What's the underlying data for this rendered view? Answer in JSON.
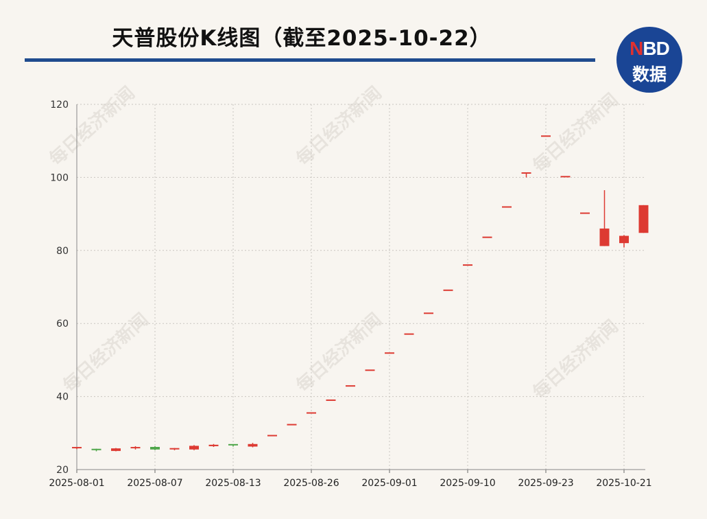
{
  "title": "天普股份K线图（截至2025-10-22）",
  "logo": {
    "line1_n": "N",
    "line1_rest": "BD",
    "line2": "数据"
  },
  "watermark": "每日经济新闻",
  "colors": {
    "up": "#dd3a32",
    "down": "#4ea64a",
    "title_rule": "#1f4b8e",
    "logo_bg": "#1a4595"
  },
  "chart_data": {
    "type": "candlestick",
    "title": "天普股份K线图（截至2025-10-22）",
    "xlabel": "",
    "ylabel": "",
    "ylim": [
      20,
      120
    ],
    "yticks": [
      20,
      40,
      60,
      80,
      100,
      120
    ],
    "xtick_labels": [
      "2025-08-01",
      "2025-08-07",
      "2025-08-13",
      "2025-08-26",
      "2025-09-01",
      "2025-09-10",
      "2025-09-23",
      "2025-10-21"
    ],
    "xtick_indices": [
      0,
      4,
      8,
      12,
      16,
      20,
      24,
      28
    ],
    "grid": true,
    "candles": [
      {
        "o": 25.8,
        "h": 26.2,
        "l": 25.6,
        "c": 26.0
      },
      {
        "o": 25.5,
        "h": 25.7,
        "l": 25.0,
        "c": 25.2
      },
      {
        "o": 25.1,
        "h": 25.9,
        "l": 25.0,
        "c": 25.8
      },
      {
        "o": 25.8,
        "h": 26.4,
        "l": 25.5,
        "c": 26.0
      },
      {
        "o": 26.2,
        "h": 26.4,
        "l": 25.3,
        "c": 25.5
      },
      {
        "o": 25.4,
        "h": 25.9,
        "l": 25.3,
        "c": 25.7
      },
      {
        "o": 25.5,
        "h": 26.7,
        "l": 25.3,
        "c": 26.5
      },
      {
        "o": 26.4,
        "h": 27.0,
        "l": 26.2,
        "c": 26.8
      },
      {
        "o": 26.8,
        "h": 26.9,
        "l": 26.3,
        "c": 26.5
      },
      {
        "o": 26.3,
        "h": 27.3,
        "l": 26.1,
        "c": 27.0
      },
      {
        "o": 29.3,
        "h": 29.3,
        "l": 29.3,
        "c": 29.3
      },
      {
        "o": 32.3,
        "h": 32.3,
        "l": 32.3,
        "c": 32.3
      },
      {
        "o": 35.5,
        "h": 35.5,
        "l": 35.5,
        "c": 35.5
      },
      {
        "o": 39.0,
        "h": 39.0,
        "l": 39.0,
        "c": 39.0
      },
      {
        "o": 42.9,
        "h": 42.9,
        "l": 42.9,
        "c": 42.9
      },
      {
        "o": 47.2,
        "h": 47.2,
        "l": 47.2,
        "c": 47.2
      },
      {
        "o": 51.9,
        "h": 51.9,
        "l": 51.9,
        "c": 51.9
      },
      {
        "o": 57.1,
        "h": 57.1,
        "l": 57.1,
        "c": 57.1
      },
      {
        "o": 62.8,
        "h": 62.8,
        "l": 62.8,
        "c": 62.8
      },
      {
        "o": 69.1,
        "h": 69.1,
        "l": 69.1,
        "c": 69.1
      },
      {
        "o": 76.0,
        "h": 76.0,
        "l": 76.0,
        "c": 76.0
      },
      {
        "o": 83.6,
        "h": 83.6,
        "l": 83.6,
        "c": 83.6
      },
      {
        "o": 91.9,
        "h": 91.9,
        "l": 91.9,
        "c": 91.9
      },
      {
        "o": 101.2,
        "h": 101.2,
        "l": 100.0,
        "c": 101.2
      },
      {
        "o": 111.3,
        "h": 111.3,
        "l": 111.3,
        "c": 111.3
      },
      {
        "o": 100.2,
        "h": 100.2,
        "l": 100.2,
        "c": 100.2
      },
      {
        "o": 90.2,
        "h": 90.2,
        "l": 90.2,
        "c": 90.2
      },
      {
        "o": 81.2,
        "h": 96.5,
        "l": 81.2,
        "c": 86.0
      },
      {
        "o": 82.0,
        "h": 84.2,
        "l": 80.8,
        "c": 84.0
      },
      {
        "o": 84.8,
        "h": 92.4,
        "l": 84.8,
        "c": 92.4
      }
    ]
  }
}
